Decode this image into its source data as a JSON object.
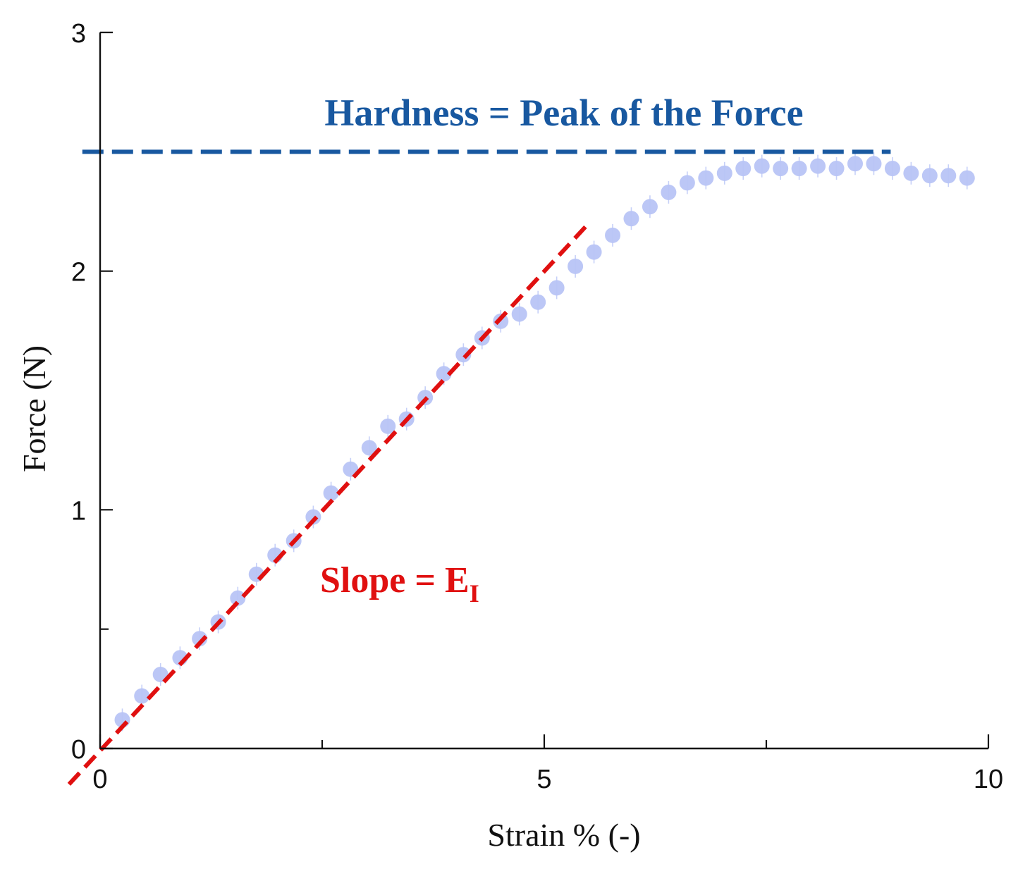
{
  "chart_data": {
    "type": "scatter",
    "xlabel": "Strain % (-)",
    "ylabel": "Force (N)",
    "xlim": [
      0,
      10
    ],
    "ylim": [
      0,
      3
    ],
    "x_ticks": [
      0,
      5,
      10
    ],
    "x_minor_ticks": [
      2.5,
      7.5
    ],
    "y_ticks": [
      0,
      1,
      2,
      3
    ],
    "y_minor_ticks": [
      0.5
    ],
    "grid": false,
    "series": [
      {
        "color": "#b8c4f6",
        "points": [
          [
            0.25,
            0.12
          ],
          [
            0.47,
            0.22
          ],
          [
            0.68,
            0.31
          ],
          [
            0.9,
            0.38
          ],
          [
            1.12,
            0.46
          ],
          [
            1.33,
            0.53
          ],
          [
            1.55,
            0.63
          ],
          [
            1.76,
            0.73
          ],
          [
            1.97,
            0.81
          ],
          [
            2.18,
            0.87
          ],
          [
            2.4,
            0.97
          ],
          [
            2.6,
            1.07
          ],
          [
            2.82,
            1.17
          ],
          [
            3.03,
            1.26
          ],
          [
            3.24,
            1.35
          ],
          [
            3.45,
            1.38
          ],
          [
            3.66,
            1.47
          ],
          [
            3.87,
            1.57
          ],
          [
            4.09,
            1.65
          ],
          [
            4.3,
            1.72
          ],
          [
            4.51,
            1.79
          ],
          [
            4.72,
            1.82
          ],
          [
            4.93,
            1.87
          ],
          [
            5.14,
            1.93
          ],
          [
            5.35,
            2.02
          ],
          [
            5.56,
            2.08
          ],
          [
            5.77,
            2.15
          ],
          [
            5.98,
            2.22
          ],
          [
            6.19,
            2.27
          ],
          [
            6.4,
            2.33
          ],
          [
            6.61,
            2.37
          ],
          [
            6.82,
            2.39
          ],
          [
            7.03,
            2.41
          ],
          [
            7.24,
            2.43
          ],
          [
            7.45,
            2.44
          ],
          [
            7.66,
            2.43
          ],
          [
            7.87,
            2.43
          ],
          [
            8.08,
            2.44
          ],
          [
            8.29,
            2.43
          ],
          [
            8.5,
            2.45
          ],
          [
            8.71,
            2.45
          ],
          [
            8.92,
            2.43
          ],
          [
            9.13,
            2.41
          ],
          [
            9.34,
            2.4
          ],
          [
            9.55,
            2.4
          ],
          [
            9.76,
            2.39
          ]
        ]
      }
    ],
    "reference_lines": [
      {
        "kind": "horizontal",
        "y": 2.5,
        "x_range": [
          -0.2,
          8.9
        ],
        "color": "#1858a0",
        "style": "dashed"
      },
      {
        "kind": "fit",
        "from": [
          -0.35,
          -0.15
        ],
        "to": [
          5.5,
          2.2
        ],
        "color": "#e01010",
        "style": "dashed"
      }
    ],
    "annotations": {
      "hardness": "Hardness = Peak of the Force",
      "slope_prefix": "Slope = E",
      "slope_subscript": "I"
    }
  }
}
